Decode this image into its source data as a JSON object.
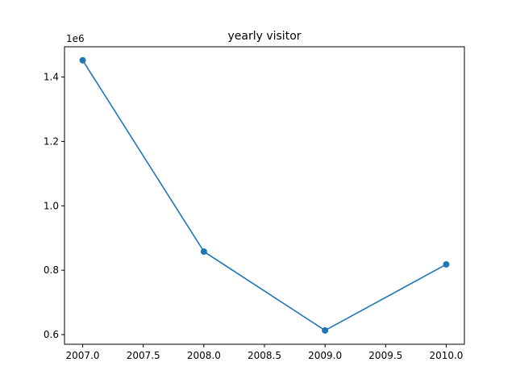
{
  "chart_data": {
    "type": "line",
    "title": "yearly visitor",
    "xlabel": "",
    "ylabel": "",
    "y_offset_text": "1e6",
    "x": [
      2007,
      2008,
      2009,
      2010
    ],
    "series": [
      {
        "values": [
          1452000,
          858000,
          613000,
          818000
        ],
        "color": "#1f77b4",
        "marker": "circle"
      }
    ],
    "xlim": [
      2006.85,
      2010.15
    ],
    "ylim": [
      570000,
      1494000
    ],
    "x_ticks": [
      2007.0,
      2007.5,
      2008.0,
      2008.5,
      2009.0,
      2009.5,
      2010.0
    ],
    "x_tick_labels": [
      "2007.0",
      "2007.5",
      "2008.0",
      "2008.5",
      "2009.0",
      "2009.5",
      "2010.0"
    ],
    "y_ticks": [
      600000,
      800000,
      1000000,
      1200000,
      1400000
    ],
    "y_tick_labels": [
      "0.6",
      "0.8",
      "1.0",
      "1.2",
      "1.4"
    ],
    "y_scale_factor": 1000000,
    "grid": false,
    "legend": "none"
  }
}
